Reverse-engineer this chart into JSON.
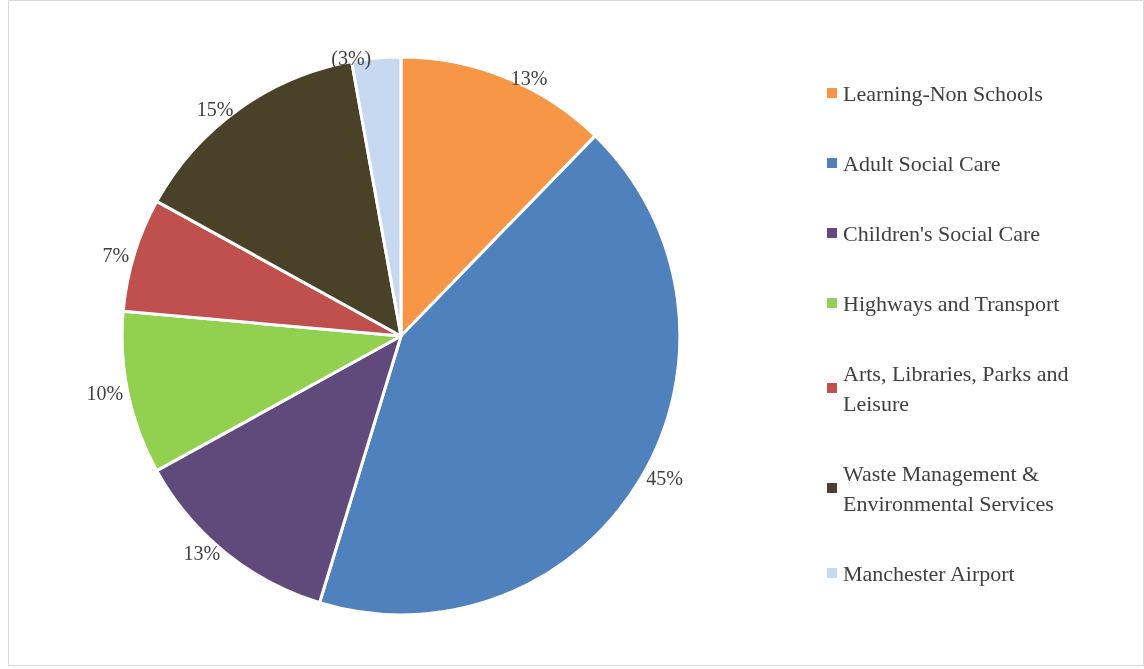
{
  "chart_data": {
    "type": "pie",
    "categories": [
      "Learning-Non Schools",
      "Adult Social Care",
      "Children's Social Care",
      "Highways and Transport",
      "Arts, Libraries, Parks and Leisure",
      "Waste Management & Environmental Services",
      "Manchester Airport"
    ],
    "values": [
      13,
      45,
      13,
      10,
      7,
      15,
      3
    ],
    "value_labels": [
      "13%",
      "45%",
      "13%",
      "10%",
      "7%",
      "15%",
      "(3%)"
    ],
    "colors": [
      "#f79646",
      "#4f81bd",
      "#604a7b",
      "#92d050",
      "#c0504d",
      "#4a4129",
      "#c6d9f1"
    ],
    "legend": "right"
  }
}
